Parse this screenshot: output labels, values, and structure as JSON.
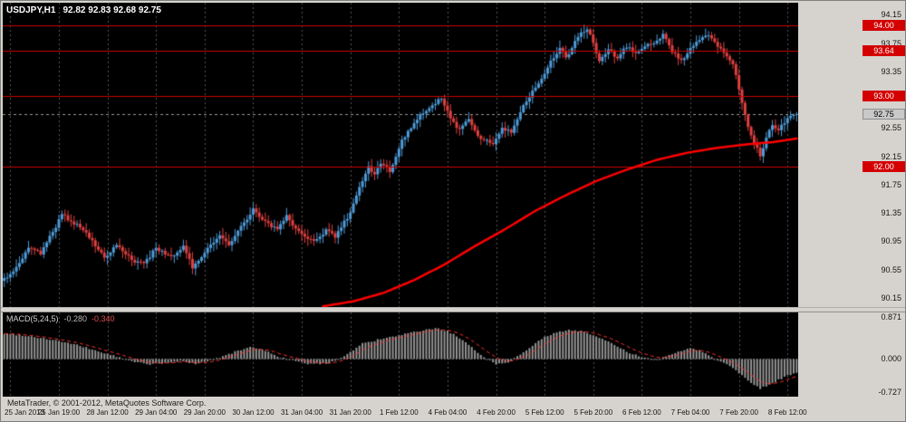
{
  "meta": {
    "application": "MetaTrader chart window"
  },
  "footer": {
    "copyright": "MetaTrader, © 2001-2012, MetaQuotes Software Corp."
  },
  "chart_data": {
    "type": "candlestick",
    "symbol_timeframe": "USDJPY,H1",
    "ohlc_text": "92.82 92.83 92.68 92.75",
    "num_candles": 262,
    "price_range": {
      "min": 90.02,
      "max": 94.32
    },
    "price_ticks": [
      94.15,
      93.75,
      93.35,
      92.55,
      92.15,
      91.75,
      91.35,
      90.95,
      90.55,
      90.15
    ],
    "levels": [
      {
        "price": 94.0,
        "label": "94.00"
      },
      {
        "price": 93.64,
        "label": "93.64"
      },
      {
        "price": 93.0,
        "label": "93.00"
      },
      {
        "price": 92.0,
        "label": "92.00"
      }
    ],
    "current_price": {
      "price": 92.75,
      "label": "92.75"
    },
    "time_labels": [
      "25 Jan 2013",
      "25 Jan 19:00",
      "28 Jan 12:00",
      "29 Jan 04:00",
      "29 Jan 20:00",
      "30 Jan 12:00",
      "31 Jan 04:00",
      "31 Jan 20:00",
      "1 Feb 12:00",
      "4 Feb 04:00",
      "4 Feb 20:00",
      "5 Feb 12:00",
      "5 Feb 20:00",
      "6 Feb 12:00",
      "7 Feb 04:00",
      "7 Feb 20:00",
      "8 Feb 12:00"
    ],
    "first_label_candle": 2,
    "label_every": 16,
    "close_waypoints": [
      [
        0,
        90.42
      ],
      [
        4,
        90.58
      ],
      [
        8,
        90.85
      ],
      [
        12,
        90.78
      ],
      [
        16,
        91.08
      ],
      [
        19,
        91.32
      ],
      [
        24,
        91.18
      ],
      [
        28,
        91.02
      ],
      [
        33,
        90.72
      ],
      [
        37,
        90.9
      ],
      [
        42,
        90.68
      ],
      [
        46,
        90.62
      ],
      [
        50,
        90.85
      ],
      [
        55,
        90.72
      ],
      [
        59,
        90.88
      ],
      [
        62,
        90.58
      ],
      [
        67,
        90.85
      ],
      [
        71,
        91.02
      ],
      [
        74,
        90.88
      ],
      [
        78,
        91.15
      ],
      [
        82,
        91.4
      ],
      [
        86,
        91.22
      ],
      [
        90,
        91.12
      ],
      [
        93,
        91.3
      ],
      [
        97,
        91.08
      ],
      [
        102,
        90.94
      ],
      [
        106,
        91.1
      ],
      [
        109,
        91.02
      ],
      [
        114,
        91.35
      ],
      [
        117,
        91.72
      ],
      [
        120,
        92.02
      ],
      [
        122,
        91.88
      ],
      [
        124,
        92.06
      ],
      [
        127,
        91.94
      ],
      [
        131,
        92.38
      ],
      [
        136,
        92.68
      ],
      [
        140,
        92.85
      ],
      [
        144,
        92.96
      ],
      [
        148,
        92.62
      ],
      [
        150,
        92.52
      ],
      [
        153,
        92.7
      ],
      [
        156,
        92.44
      ],
      [
        161,
        92.33
      ],
      [
        164,
        92.55
      ],
      [
        167,
        92.48
      ],
      [
        171,
        92.88
      ],
      [
        176,
        93.18
      ],
      [
        180,
        93.48
      ],
      [
        183,
        93.66
      ],
      [
        185,
        93.54
      ],
      [
        189,
        93.84
      ],
      [
        192,
        93.96
      ],
      [
        194,
        93.74
      ],
      [
        196,
        93.48
      ],
      [
        199,
        93.66
      ],
      [
        202,
        93.54
      ],
      [
        205,
        93.7
      ],
      [
        208,
        93.6
      ],
      [
        211,
        93.7
      ],
      [
        214,
        93.76
      ],
      [
        217,
        93.86
      ],
      [
        220,
        93.64
      ],
      [
        223,
        93.5
      ],
      [
        226,
        93.66
      ],
      [
        229,
        93.8
      ],
      [
        232,
        93.88
      ],
      [
        235,
        93.72
      ],
      [
        238,
        93.55
      ],
      [
        240,
        93.45
      ],
      [
        242,
        93.12
      ],
      [
        244,
        92.72
      ],
      [
        246,
        92.45
      ],
      [
        249,
        92.16
      ],
      [
        251,
        92.4
      ],
      [
        253,
        92.6
      ],
      [
        255,
        92.52
      ],
      [
        257,
        92.64
      ],
      [
        259,
        92.7
      ],
      [
        261,
        92.75
      ]
    ],
    "ma_waypoints": [
      [
        105,
        90.03
      ],
      [
        115,
        90.1
      ],
      [
        125,
        90.22
      ],
      [
        135,
        90.4
      ],
      [
        145,
        90.62
      ],
      [
        155,
        90.88
      ],
      [
        165,
        91.12
      ],
      [
        175,
        91.38
      ],
      [
        185,
        91.6
      ],
      [
        195,
        91.8
      ],
      [
        205,
        91.96
      ],
      [
        215,
        92.1
      ],
      [
        225,
        92.2
      ],
      [
        235,
        92.27
      ],
      [
        245,
        92.32
      ],
      [
        253,
        92.35
      ],
      [
        261,
        92.4
      ]
    ],
    "macd": {
      "name": "MACD(5,24,5)",
      "value_macd": "-0.280",
      "value_signal": "-0.340",
      "scale_max": 0.871,
      "scale_min": -0.727,
      "scale_ticks": [
        {
          "v": 0.871,
          "label": "0.871"
        },
        {
          "v": 0,
          "label": "0.000"
        },
        {
          "v": -0.727,
          "label": "-0.727"
        }
      ],
      "hist_waypoints": [
        [
          0,
          0.47
        ],
        [
          6,
          0.44
        ],
        [
          12,
          0.39
        ],
        [
          18,
          0.33
        ],
        [
          24,
          0.25
        ],
        [
          30,
          0.15
        ],
        [
          36,
          0.05
        ],
        [
          42,
          -0.06
        ],
        [
          48,
          -0.11
        ],
        [
          54,
          -0.09
        ],
        [
          58,
          -0.05
        ],
        [
          63,
          -0.1
        ],
        [
          68,
          -0.04
        ],
        [
          73,
          0.06
        ],
        [
          78,
          0.16
        ],
        [
          82,
          0.22
        ],
        [
          86,
          0.14
        ],
        [
          91,
          0.02
        ],
        [
          96,
          -0.06
        ],
        [
          101,
          -0.11
        ],
        [
          106,
          -0.1
        ],
        [
          110,
          -0.02
        ],
        [
          114,
          0.12
        ],
        [
          118,
          0.28
        ],
        [
          123,
          0.35
        ],
        [
          128,
          0.41
        ],
        [
          133,
          0.47
        ],
        [
          138,
          0.53
        ],
        [
          142,
          0.57
        ],
        [
          146,
          0.52
        ],
        [
          150,
          0.38
        ],
        [
          154,
          0.2
        ],
        [
          158,
          0.03
        ],
        [
          162,
          -0.11
        ],
        [
          166,
          -0.08
        ],
        [
          170,
          0.08
        ],
        [
          174,
          0.25
        ],
        [
          178,
          0.4
        ],
        [
          182,
          0.49
        ],
        [
          186,
          0.54
        ],
        [
          190,
          0.52
        ],
        [
          194,
          0.44
        ],
        [
          198,
          0.34
        ],
        [
          202,
          0.22
        ],
        [
          206,
          0.1
        ],
        [
          210,
          0.02
        ],
        [
          214,
          -0.03
        ],
        [
          218,
          0.03
        ],
        [
          222,
          0.13
        ],
        [
          226,
          0.2
        ],
        [
          230,
          0.13
        ],
        [
          233,
          0.02
        ],
        [
          236,
          -0.06
        ],
        [
          240,
          -0.18
        ],
        [
          243,
          -0.32
        ],
        [
          246,
          -0.46
        ],
        [
          249,
          -0.57
        ],
        [
          252,
          -0.5
        ],
        [
          255,
          -0.41
        ],
        [
          258,
          -0.33
        ],
        [
          261,
          -0.28
        ]
      ]
    },
    "colors": {
      "background": "#000000",
      "up": "#4f9bd8",
      "down": "#e04040",
      "ma": "#ff0000",
      "level_line": "#cc0000",
      "grid": "#565656",
      "current_line": "#9a9a9a",
      "hist": "#969696",
      "signal": "#ff3030",
      "badge_level_bg": "#d40000",
      "badge_current_bg": "#c9c9c9"
    }
  }
}
